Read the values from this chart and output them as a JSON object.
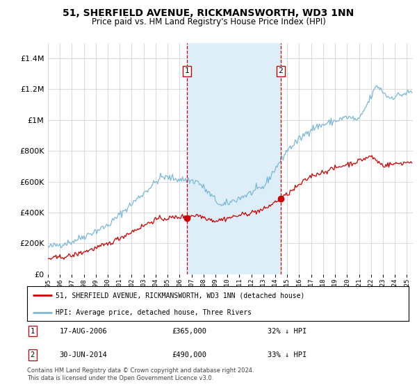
{
  "title": "51, SHERFIELD AVENUE, RICKMANSWORTH, WD3 1NN",
  "subtitle": "Price paid vs. HM Land Registry's House Price Index (HPI)",
  "legend_line1": "51, SHERFIELD AVENUE, RICKMANSWORTH, WD3 1NN (detached house)",
  "legend_line2": "HPI: Average price, detached house, Three Rivers",
  "transaction1_date": "17-AUG-2006",
  "transaction1_price": "£365,000",
  "transaction1_hpi": "32% ↓ HPI",
  "transaction2_date": "30-JUN-2014",
  "transaction2_price": "£490,000",
  "transaction2_hpi": "33% ↓ HPI",
  "footnote": "Contains HM Land Registry data © Crown copyright and database right 2024.\nThis data is licensed under the Open Government Licence v3.0.",
  "hpi_color": "#7ab8d8",
  "price_color": "#cc0000",
  "vline_color": "#cc0000",
  "shade_color": "#ddeef8",
  "ylim": [
    0,
    1500000
  ],
  "yticks": [
    0,
    200000,
    400000,
    600000,
    800000,
    1000000,
    1200000,
    1400000
  ],
  "background_color": "#ffffff",
  "grid_color": "#cccccc"
}
